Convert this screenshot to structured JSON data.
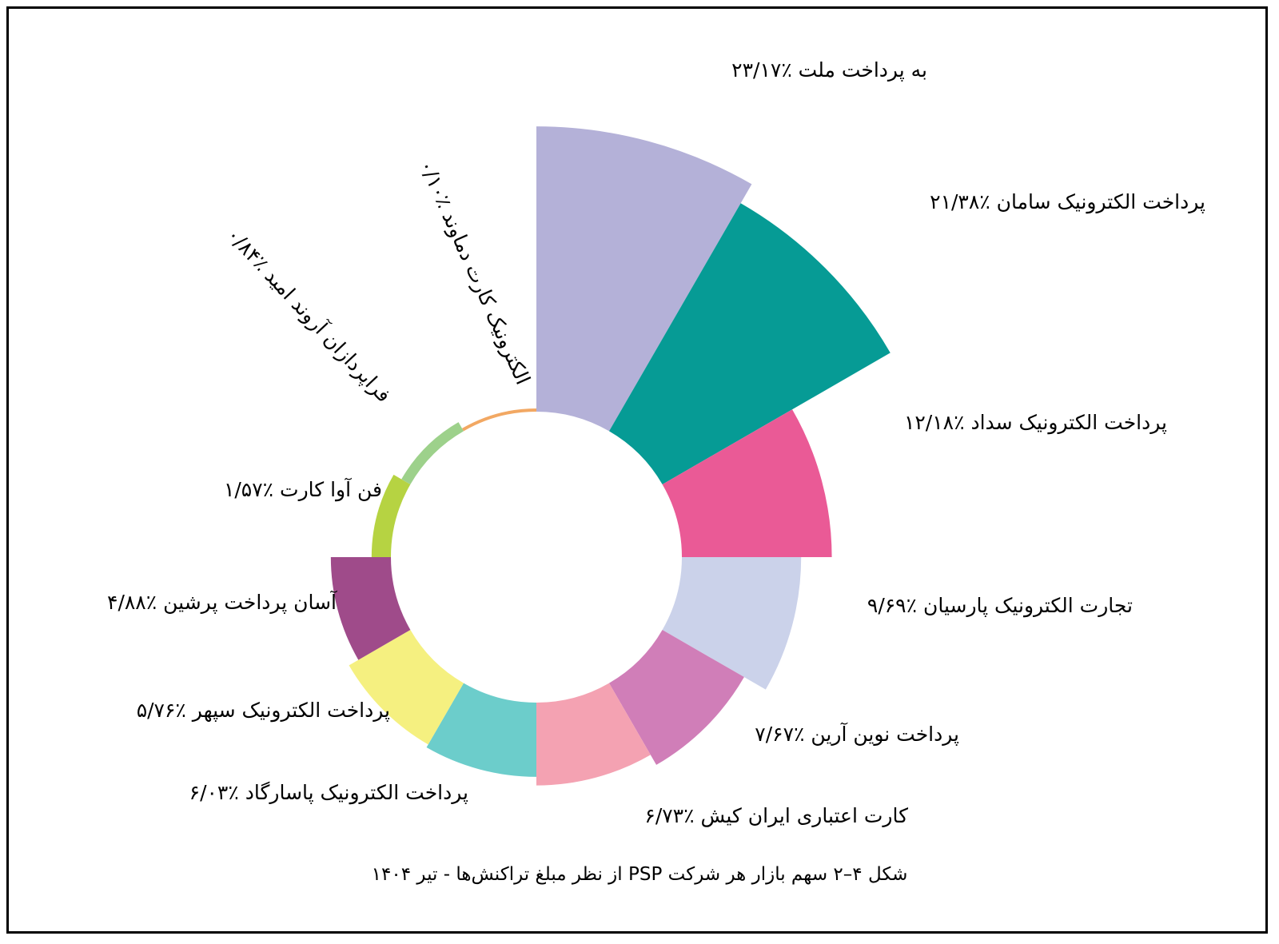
{
  "chart_data": {
    "type": "pie",
    "variant": "polar-area (nightingale rose)",
    "caption": "شکل ۴–۲ سهم بازار هر شرکت PSP از نظر مبلغ تراکنش‌ها - تیر ۱۴۰۴",
    "series": [
      {
        "name": "به پرداخت ملت",
        "value": 23.17,
        "label": "به پرداخت ملت ٪۲۳/۱۷",
        "color": "#B4B1D8"
      },
      {
        "name": "پرداخت الکترونیک سامان",
        "value": 21.38,
        "label": "پرداخت الکترونیک سامان ٪۲۱/۳۸",
        "color": "#069B95"
      },
      {
        "name": "پرداخت الکترونیک سداد",
        "value": 12.18,
        "label": "پرداخت الکترونیک سداد ٪۱۲/۱۸",
        "color": "#EA5A96"
      },
      {
        "name": "تجارت الکترونیک پارسیان",
        "value": 9.69,
        "label": "تجارت الکترونیک پارسیان ٪۹/۶۹",
        "color": "#CBD2EA"
      },
      {
        "name": "پرداخت نوین آرین",
        "value": 7.67,
        "label": "پرداخت نوین آرین ٪۷/۶۷",
        "color": "#D07EB8"
      },
      {
        "name": "کارت اعتباری ایران کیش",
        "value": 6.73,
        "label": "کارت اعتباری ایران کیش ٪۶/۷۳",
        "color": "#F4A2B2"
      },
      {
        "name": "پرداخت الکترونیک پاسارگاد",
        "value": 6.03,
        "label": "پرداخت الکترونیک پاسارگاد ٪۶/۰۳",
        "color": "#6CCDCB"
      },
      {
        "name": "پرداخت الکترونیک سپهر",
        "value": 5.76,
        "label": "پرداخت الکترونیک سپهر ٪۵/۷۶",
        "color": "#F5F080"
      },
      {
        "name": "آسان پرداخت پرشین",
        "value": 4.88,
        "label": "آسان پرداخت پرشین ٪۴/۸۸",
        "color": "#9F4B8A"
      },
      {
        "name": "فن آوا کارت",
        "value": 1.57,
        "label": "فن آوا کارت ٪۱/۵۷",
        "color": "#B6D342"
      },
      {
        "name": "فراپردازان آروند امید",
        "value": 0.84,
        "label": "فراپردازان آروند امید ٪۰/۸۴",
        "color": "#9DD18B"
      },
      {
        "name": "الکترونیک کارت دماوند",
        "value": 0.1,
        "label": "الکترونیک کارت دماوند ٪۰/۱۰",
        "color": "#F2A863"
      }
    ]
  }
}
